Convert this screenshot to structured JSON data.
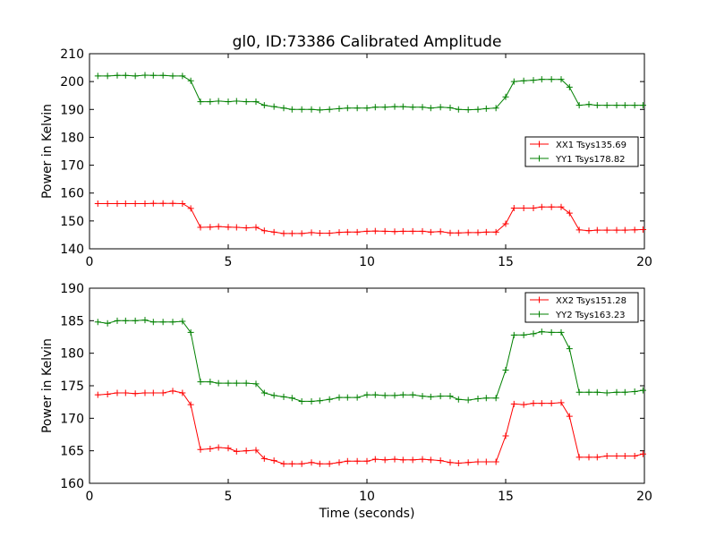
{
  "title": "gl0, ID:73386 Calibrated Amplitude",
  "chart_data": [
    {
      "type": "line",
      "title": "gl0, ID:73386 Calibrated Amplitude",
      "xlabel": "",
      "ylabel": "Power in Kelvin",
      "xlim": [
        0,
        20
      ],
      "ylim": [
        140,
        210
      ],
      "xticks": [
        "0",
        "5",
        "10",
        "15",
        "20"
      ],
      "yticks": [
        "140",
        "150",
        "160",
        "170",
        "180",
        "190",
        "200",
        "210"
      ],
      "legend_position": "center-right",
      "x": [
        0.3,
        0.65,
        1.0,
        1.3,
        1.65,
        2.0,
        2.3,
        2.65,
        3.0,
        3.35,
        3.65,
        4.0,
        4.35,
        4.65,
        5.0,
        5.3,
        5.65,
        6.0,
        6.3,
        6.65,
        7.0,
        7.3,
        7.65,
        8.0,
        8.3,
        8.65,
        9.0,
        9.3,
        9.65,
        10.0,
        10.3,
        10.65,
        11.0,
        11.3,
        11.65,
        12.0,
        12.3,
        12.65,
        13.0,
        13.3,
        13.65,
        14.0,
        14.3,
        14.65,
        15.0,
        15.3,
        15.65,
        16.0,
        16.3,
        16.65,
        17.0,
        17.3,
        17.65,
        18.0,
        18.3,
        18.65,
        19.0,
        19.3,
        19.65,
        19.95
      ],
      "series": [
        {
          "name": "XX1 Tsys135.69",
          "color": "#ff0000",
          "values": [
            156.2,
            156.2,
            156.2,
            156.2,
            156.2,
            156.2,
            156.3,
            156.3,
            156.3,
            156.2,
            154.5,
            147.7,
            147.8,
            148.0,
            147.8,
            147.7,
            147.5,
            147.7,
            146.5,
            146.0,
            145.5,
            145.5,
            145.5,
            145.8,
            145.6,
            145.6,
            145.9,
            146.0,
            146.0,
            146.3,
            146.4,
            146.3,
            146.2,
            146.3,
            146.3,
            146.3,
            146.0,
            146.2,
            145.7,
            145.7,
            145.8,
            145.8,
            146.0,
            146.0,
            149.0,
            154.6,
            154.6,
            154.6,
            155.0,
            155.0,
            155.0,
            152.8,
            146.8,
            146.5,
            146.7,
            146.7,
            146.7,
            146.7,
            146.8,
            146.9
          ]
        },
        {
          "name": "YY1 Tsys178.82",
          "color": "#008000",
          "values": [
            202.0,
            202.0,
            202.2,
            202.2,
            202.0,
            202.3,
            202.2,
            202.2,
            202.0,
            202.0,
            200.3,
            192.8,
            192.8,
            193.0,
            192.8,
            193.0,
            192.8,
            192.8,
            191.5,
            191.0,
            190.5,
            190.0,
            190.0,
            190.0,
            189.8,
            190.0,
            190.3,
            190.5,
            190.5,
            190.5,
            190.8,
            190.8,
            191.0,
            191.0,
            190.8,
            190.8,
            190.5,
            190.8,
            190.6,
            190.0,
            189.9,
            190.0,
            190.3,
            190.5,
            194.5,
            200.0,
            200.3,
            200.5,
            200.8,
            200.8,
            200.8,
            198.0,
            191.5,
            191.8,
            191.5,
            191.5,
            191.5,
            191.5,
            191.5,
            191.5
          ]
        }
      ]
    },
    {
      "type": "line",
      "title": "",
      "xlabel": "Time (seconds)",
      "ylabel": "Power in Kelvin",
      "xlim": [
        0,
        20
      ],
      "ylim": [
        160,
        190
      ],
      "xticks": [
        "0",
        "5",
        "10",
        "15",
        "20"
      ],
      "yticks": [
        "160",
        "165",
        "170",
        "175",
        "180",
        "185",
        "190"
      ],
      "legend_position": "top-right",
      "x": [
        0.3,
        0.65,
        1.0,
        1.3,
        1.65,
        2.0,
        2.3,
        2.65,
        3.0,
        3.35,
        3.65,
        4.0,
        4.35,
        4.65,
        5.0,
        5.3,
        5.65,
        6.0,
        6.3,
        6.65,
        7.0,
        7.3,
        7.65,
        8.0,
        8.3,
        8.65,
        9.0,
        9.3,
        9.65,
        10.0,
        10.3,
        10.65,
        11.0,
        11.3,
        11.65,
        12.0,
        12.3,
        12.65,
        13.0,
        13.3,
        13.65,
        14.0,
        14.3,
        14.65,
        15.0,
        15.3,
        15.65,
        16.0,
        16.3,
        16.65,
        17.0,
        17.3,
        17.65,
        18.0,
        18.3,
        18.65,
        19.0,
        19.3,
        19.65,
        19.95
      ],
      "series": [
        {
          "name": "XX2 Tsys151.28",
          "color": "#ff0000",
          "values": [
            173.6,
            173.7,
            173.9,
            173.9,
            173.8,
            173.9,
            173.9,
            173.9,
            174.2,
            173.9,
            172.1,
            165.2,
            165.3,
            165.5,
            165.4,
            164.9,
            165.0,
            165.1,
            163.8,
            163.5,
            163.0,
            163.0,
            163.0,
            163.2,
            163.0,
            163.0,
            163.2,
            163.4,
            163.4,
            163.4,
            163.7,
            163.6,
            163.7,
            163.6,
            163.6,
            163.7,
            163.6,
            163.5,
            163.2,
            163.1,
            163.2,
            163.3,
            163.3,
            163.3,
            167.3,
            172.2,
            172.1,
            172.3,
            172.3,
            172.3,
            172.4,
            170.3,
            164.0,
            164.0,
            164.0,
            164.2,
            164.2,
            164.2,
            164.2,
            164.5
          ]
        },
        {
          "name": "YY2 Tsys163.23",
          "color": "#008000",
          "values": [
            184.8,
            184.6,
            185.0,
            185.0,
            185.0,
            185.1,
            184.8,
            184.8,
            184.8,
            184.9,
            183.2,
            175.6,
            175.6,
            175.4,
            175.4,
            175.4,
            175.4,
            175.3,
            173.9,
            173.5,
            173.3,
            173.1,
            172.6,
            172.6,
            172.7,
            172.9,
            173.2,
            173.2,
            173.2,
            173.6,
            173.6,
            173.5,
            173.5,
            173.6,
            173.6,
            173.4,
            173.3,
            173.4,
            173.4,
            172.9,
            172.8,
            173.0,
            173.1,
            173.1,
            177.4,
            182.8,
            182.8,
            183.0,
            183.3,
            183.2,
            183.2,
            180.7,
            174.0,
            174.0,
            174.0,
            173.9,
            174.0,
            174.0,
            174.1,
            174.3
          ]
        }
      ]
    }
  ]
}
